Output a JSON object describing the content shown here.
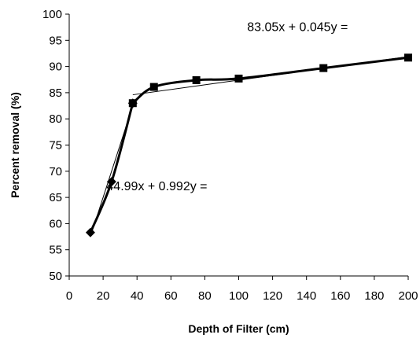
{
  "chart_data": {
    "type": "line",
    "xlabel": "Depth of Filter (cm)",
    "ylabel": "Percent removal (%)",
    "xlim": [
      0,
      200
    ],
    "ylim": [
      50,
      100
    ],
    "xticks": [
      "0",
      "20",
      "40",
      "60",
      "80",
      "100",
      "120",
      "140",
      "160",
      "180",
      "200"
    ],
    "yticks": [
      "50",
      "55",
      "60",
      "65",
      "70",
      "75",
      "80",
      "85",
      "90",
      "95",
      "100"
    ],
    "grid": false,
    "legend": "none",
    "series": [
      {
        "marker": "diamond",
        "color": "#000000",
        "x": [
          12.5,
          25,
          37.5
        ],
        "y": [
          58.3,
          68.0,
          83.0
        ]
      },
      {
        "marker": "square",
        "color": "#000000",
        "x": [
          37.5,
          50,
          75,
          100,
          150,
          200
        ],
        "y": [
          83.0,
          86.1,
          87.4,
          87.7,
          89.7,
          91.7
        ]
      }
    ],
    "trendlines": [
      {
        "x": [
          12.5,
          37.5
        ],
        "y": [
          57.5,
          82.5
        ]
      },
      {
        "x": [
          37.5,
          200
        ],
        "y": [
          84.6,
          91.9
        ]
      }
    ],
    "annotations": [
      {
        "text": "83.05x + 0.045y =",
        "x": 105,
        "y": 96.8
      },
      {
        "text": "44.99x + 0.992y =",
        "x": 22,
        "y": 66.4
      }
    ]
  }
}
